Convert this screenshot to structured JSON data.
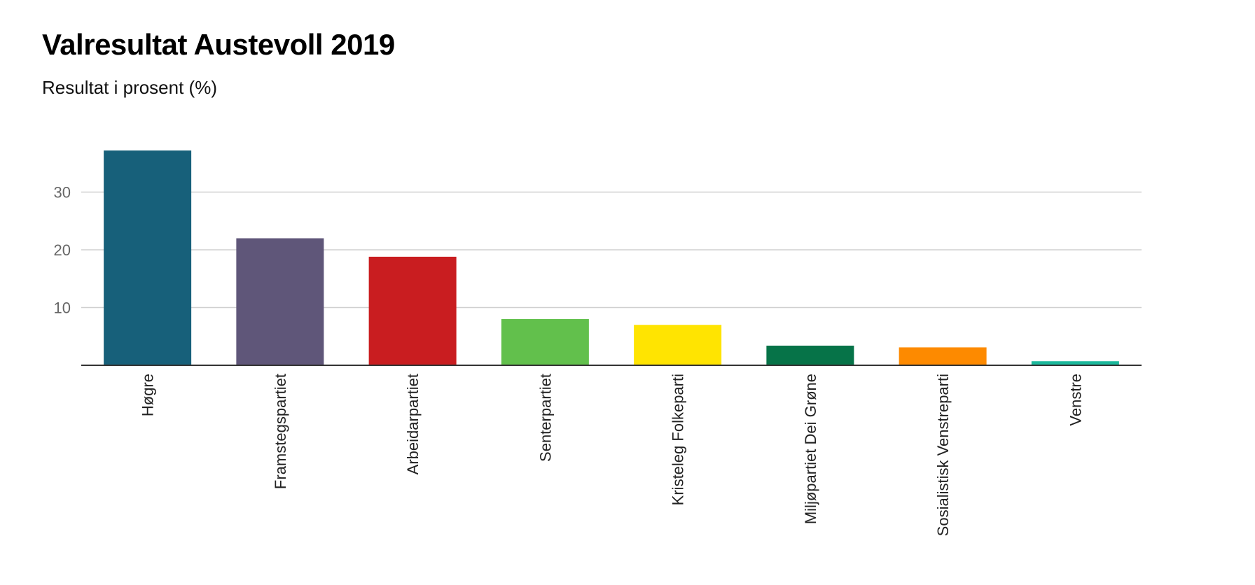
{
  "chart_data": {
    "type": "bar",
    "title": "Valresultat Austevoll 2019",
    "subtitle": "Resultat i prosent (%)",
    "xlabel": "",
    "ylabel": "",
    "ylim": [
      0,
      37
    ],
    "yticks": [
      10,
      20,
      30
    ],
    "grid": true,
    "categories": [
      "Høgre",
      "Framstegspartiet",
      "Arbeidarpartiet",
      "Senterpartiet",
      "Kristeleg Folkeparti",
      "Miljøpartiet Dei Grøne",
      "Sosialistisk Venstreparti",
      "Venstre"
    ],
    "values": [
      37.2,
      22.0,
      18.8,
      8.0,
      7.0,
      3.4,
      3.1,
      0.7
    ],
    "colors": [
      "#17607a",
      "#5f5679",
      "#c91d20",
      "#62c04c",
      "#ffe401",
      "#067348",
      "#fd8a00",
      "#1cb99c"
    ]
  }
}
